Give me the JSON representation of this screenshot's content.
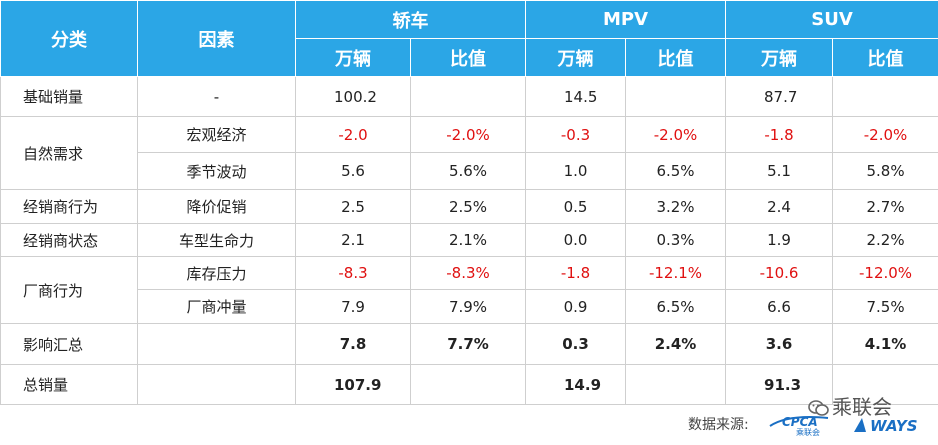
{
  "header": {
    "category": "分类",
    "factor": "因素",
    "groups": [
      {
        "name": "轿车",
        "sub": [
          "万辆",
          "比值"
        ]
      },
      {
        "name": "MPV",
        "sub": [
          "万辆",
          "比值"
        ]
      },
      {
        "name": "SUV",
        "sub": [
          "万辆",
          "比值"
        ]
      }
    ]
  },
  "rows": {
    "base": {
      "category": "基础销量",
      "factor": "-",
      "v": [
        "100.2",
        "",
        "14.5",
        "",
        "87.7",
        ""
      ]
    },
    "natural": {
      "category": "自然需求",
      "r1": {
        "factor": "宏观经济",
        "v": [
          "-2.0",
          "-2.0%",
          "-0.3",
          "-2.0%",
          "-1.8",
          "-2.0%"
        ]
      },
      "r2": {
        "factor": "季节波动",
        "v": [
          "5.6",
          "5.6%",
          "1.0",
          "6.5%",
          "5.1",
          "5.8%"
        ]
      }
    },
    "dealer_behavior": {
      "category": "经销商行为",
      "factor": "降价促销",
      "v": [
        "2.5",
        "2.5%",
        "0.5",
        "3.2%",
        "2.4",
        "2.7%"
      ]
    },
    "dealer_state": {
      "category": "经销商状态",
      "factor": "车型生命力",
      "v": [
        "2.1",
        "2.1%",
        "0.0",
        "0.3%",
        "1.9",
        "2.2%"
      ]
    },
    "maker": {
      "category": "厂商行为",
      "r1": {
        "factor": "库存压力",
        "v": [
          "-8.3",
          "-8.3%",
          "-1.8",
          "-12.1%",
          "-10.6",
          "-12.0%"
        ]
      },
      "r2": {
        "factor": "厂商冲量",
        "v": [
          "7.9",
          "7.9%",
          "0.9",
          "6.5%",
          "6.6",
          "7.5%"
        ]
      }
    },
    "impact": {
      "category": "影响汇总",
      "factor": "",
      "v": [
        "7.8",
        "7.7%",
        "0.3",
        "2.4%",
        "3.6",
        "4.1%"
      ]
    },
    "total": {
      "category": "总销量",
      "factor": "",
      "v": [
        "107.9",
        "",
        "14.9",
        "",
        "91.3",
        ""
      ]
    }
  },
  "footer": {
    "source_label": "数据来源:",
    "wechat_name": "乘联会",
    "cpca_logo_text": "CPCA",
    "cpca_sub_text": "乘联会",
    "ways_logo_text": "WAYS",
    "colors": {
      "header_bg": "#2ba6e6",
      "negative": "#e01010"
    }
  }
}
